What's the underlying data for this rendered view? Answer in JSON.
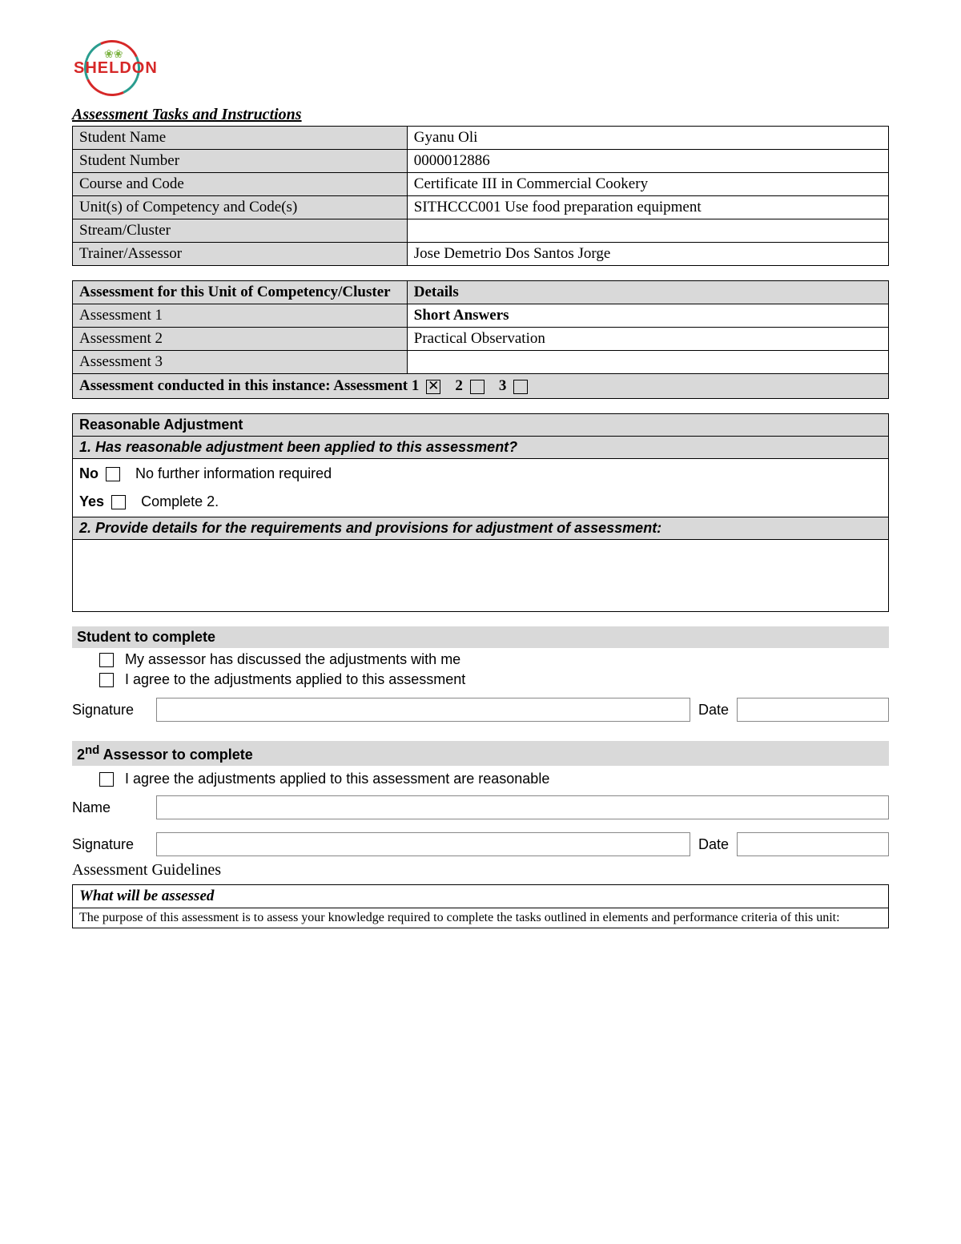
{
  "logo_text": "SHELDON",
  "section_title": "Assessment Tasks and Instructions",
  "student_table": {
    "rows": [
      {
        "label": "Student Name",
        "value": "Gyanu Oli"
      },
      {
        "label": "Student Number",
        "value": "0000012886"
      },
      {
        "label": "Course and Code",
        "value": "Certificate III in Commercial Cookery"
      },
      {
        "label": "Unit(s) of Competency and Code(s)",
        "value": "SITHCCC001 Use food preparation equipment"
      },
      {
        "label": "Stream/Cluster",
        "value": ""
      },
      {
        "label": "Trainer/Assessor",
        "value": "Jose Demetrio Dos Santos Jorge"
      }
    ]
  },
  "assessment_table": {
    "header_left": "Assessment for this Unit of Competency/Cluster",
    "header_right": "Details",
    "rows": [
      {
        "label": "Assessment 1",
        "value": "Short Answers",
        "value_bold": true
      },
      {
        "label": "Assessment 2",
        "value": "Practical Observation",
        "value_bold": false
      },
      {
        "label": "Assessment 3",
        "value": "",
        "value_bold": false
      }
    ],
    "conducted_label": "Assessment conducted in this instance: Assessment",
    "options": [
      {
        "num": "1",
        "checked": true
      },
      {
        "num": "2",
        "checked": false
      },
      {
        "num": "3",
        "checked": false
      }
    ]
  },
  "reasonable": {
    "title": "Reasonable Adjustment",
    "q1": "1.   Has reasonable adjustment been applied to this assessment?",
    "no_label": "No",
    "no_text": "No further information required",
    "yes_label": "Yes",
    "yes_text": "Complete 2.",
    "q2": "2.   Provide details for the requirements and provisions for adjustment of assessment:"
  },
  "student_complete": {
    "title": "Student to complete",
    "check1": "My assessor has discussed the adjustments with me",
    "check2": "I agree to the adjustments applied to this assessment",
    "sig_label": "Signature",
    "date_label": "Date"
  },
  "assessor_complete": {
    "title_prefix": "2",
    "title_sup": "nd",
    "title_rest": " Assessor to complete",
    "check1": "I agree the adjustments applied to this assessment are reasonable",
    "name_label": "Name",
    "sig_label": "Signature",
    "date_label": "Date"
  },
  "guidelines_title": "Assessment Guidelines",
  "what_assessed": {
    "title": "What will be assessed",
    "body": "The purpose of this assessment is to assess your knowledge required to complete the tasks outlined in elements and performance criteria of this unit:"
  }
}
